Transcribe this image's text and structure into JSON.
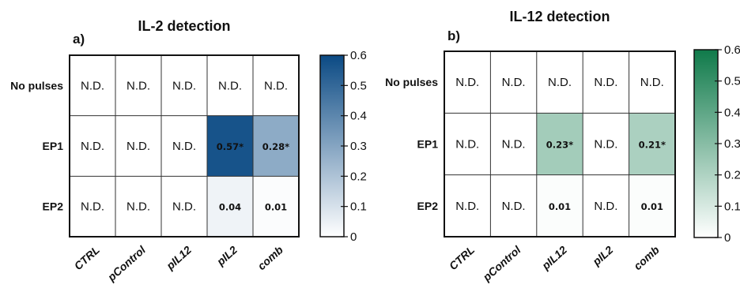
{
  "chart_data": [
    {
      "type": "heatmap",
      "panel": "a)",
      "title": "IL-2 detection",
      "rows": [
        "No pulses",
        "EP1",
        "EP2"
      ],
      "columns": [
        "CTRL",
        "pControl",
        "pIL12",
        "pIL2",
        "comb"
      ],
      "values": [
        [
          null,
          null,
          null,
          null,
          null
        ],
        [
          null,
          null,
          null,
          0.57,
          0.28
        ],
        [
          null,
          null,
          null,
          0.04,
          0.01
        ]
      ],
      "cell_text": [
        [
          "N.D.",
          "N.D.",
          "N.D.",
          "N.D.",
          "N.D."
        ],
        [
          "N.D.",
          "N.D.",
          "N.D.",
          "0.57*",
          "0.28*"
        ],
        [
          "N.D.",
          "N.D.",
          "N.D.",
          "0.04",
          "0.01"
        ]
      ],
      "colorbar": {
        "min": 0,
        "max": 0.6,
        "ticks": [
          "0",
          "0.1",
          "0.2",
          "0.3",
          "0.4",
          "0.5",
          "0.6"
        ],
        "color_low": "#ffffff",
        "color_high": "#0b4a84"
      }
    },
    {
      "type": "heatmap",
      "panel": "b)",
      "title": "IL-12 detection",
      "rows": [
        "No pulses",
        "EP1",
        "EP2"
      ],
      "columns": [
        "CTRL",
        "pControl",
        "pIL12",
        "pIL2",
        "comb"
      ],
      "values": [
        [
          null,
          null,
          null,
          null,
          null
        ],
        [
          null,
          null,
          0.23,
          null,
          0.21
        ],
        [
          null,
          null,
          0.01,
          null,
          0.01
        ]
      ],
      "cell_text": [
        [
          "N.D.",
          "N.D.",
          "N.D.",
          "N.D.",
          "N.D."
        ],
        [
          "N.D.",
          "N.D.",
          "0.23*",
          "N.D.",
          "0.21*"
        ],
        [
          "N.D.",
          "N.D.",
          "0.01",
          "N.D.",
          "0.01"
        ]
      ],
      "colorbar": {
        "min": 0,
        "max": 0.6,
        "ticks": [
          "0",
          "0.1",
          "0.2",
          "0.3",
          "0.4",
          "0.5",
          "0.6"
        ],
        "color_low": "#ffffff",
        "color_high": "#0f7a4a"
      }
    }
  ]
}
